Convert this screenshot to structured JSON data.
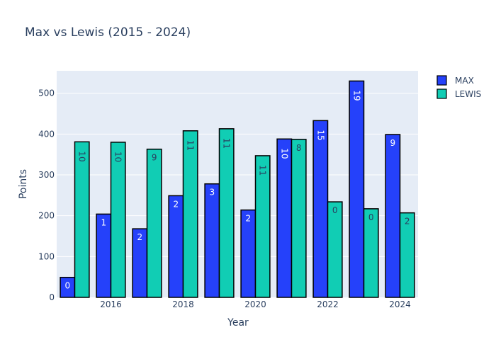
{
  "chart_data": {
    "type": "bar",
    "title": "Max vs Lewis (2015 - 2024)",
    "xlabel": "Year",
    "ylabel": "Points",
    "ylim": [
      0,
      555
    ],
    "yticks": [
      0,
      100,
      200,
      300,
      400,
      500
    ],
    "x": [
      2015,
      2016,
      2017,
      2018,
      2019,
      2020,
      2021,
      2022,
      2023,
      2024
    ],
    "xticks": [
      2016,
      2018,
      2020,
      2022,
      2024
    ],
    "grid": true,
    "legend_position": "top-right",
    "series": [
      {
        "name": "MAX",
        "color": "#2541fa",
        "label_color": "#ffffff",
        "values": [
          49,
          204,
          168,
          249,
          278,
          214,
          388,
          433,
          530,
          399
        ],
        "labels": [
          "0",
          "1",
          "2",
          "2",
          "3",
          "2",
          "10",
          "15",
          "19",
          "9"
        ]
      },
      {
        "name": "LEWIS",
        "color": "#11cdb4",
        "label_color": "#2a3f5f",
        "values": [
          381,
          380,
          363,
          408,
          413,
          347,
          387,
          234,
          217,
          207
        ],
        "labels": [
          "10",
          "10",
          "9",
          "11",
          "11",
          "11",
          "8",
          "0",
          "0",
          "2"
        ]
      }
    ]
  }
}
